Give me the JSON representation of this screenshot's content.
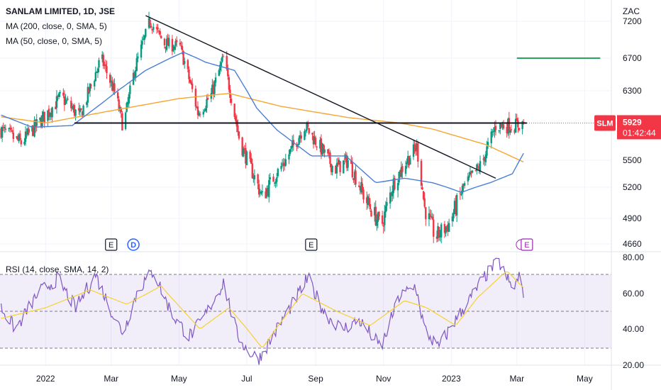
{
  "header": {
    "title": "SANLAM LIMITED, 1D, JSE",
    "ma200_label": "MA (200, close, 0, SMA, 5)",
    "ma50_label": "MA (50, close, 0, SMA, 5)",
    "rsi_label": "RSI (14, close, SMA, 14, 2)"
  },
  "price_tag": {
    "symbol": "SLM",
    "price": "5929",
    "countdown": "01:42:44"
  },
  "colors": {
    "up": "#089981",
    "down": "#f23645",
    "ma200": "#f7a530",
    "ma50": "#4a7fd6",
    "rsi": "#7e57c2",
    "rsi_ma": "#f5d130",
    "trendline": "#131722",
    "support": "#131722",
    "target": "#26a65b",
    "tag": "#f23645"
  },
  "chart_data": [
    {
      "type": "candlestick",
      "currency_label": "ZAC",
      "y_ticks": [
        4660,
        4900,
        5200,
        5500,
        6300,
        6700,
        7200
      ],
      "y_tick_labels": [
        "4660",
        "4900",
        "5200",
        "5500",
        "6300",
        "6700",
        "7200"
      ],
      "ylim": [
        4560,
        7350
      ],
      "x_ticks": [
        "2022",
        "Mar",
        "May",
        "Jul",
        "Sep",
        "Nov",
        "2023",
        "Mar",
        "May"
      ],
      "x_tick_dates": [
        "2022-01-01",
        "2022-03-01",
        "2022-05-01",
        "2022-07-01",
        "2022-09-01",
        "2022-11-01",
        "2023-01-01",
        "2023-03-01",
        "2023-05-01"
      ],
      "xlim": [
        "2021-11-21",
        "2023-05-25"
      ],
      "close_waypoints": [
        {
          "date": "2021-11-22",
          "close": 5850
        },
        {
          "date": "2021-12-10",
          "close": 5700
        },
        {
          "date": "2021-12-28",
          "close": 5960
        },
        {
          "date": "2022-01-15",
          "close": 6230
        },
        {
          "date": "2022-02-01",
          "close": 6000
        },
        {
          "date": "2022-02-20",
          "close": 6700
        },
        {
          "date": "2022-03-05",
          "close": 6250
        },
        {
          "date": "2022-03-12",
          "close": 5880
        },
        {
          "date": "2022-03-22",
          "close": 6550
        },
        {
          "date": "2022-04-05",
          "close": 7200
        },
        {
          "date": "2022-04-18",
          "close": 6900
        },
        {
          "date": "2022-05-02",
          "close": 6850
        },
        {
          "date": "2022-05-18",
          "close": 6050
        },
        {
          "date": "2022-05-30",
          "close": 6250
        },
        {
          "date": "2022-06-10",
          "close": 6700
        },
        {
          "date": "2022-06-25",
          "close": 5700
        },
        {
          "date": "2022-07-05",
          "close": 5400
        },
        {
          "date": "2022-07-15",
          "close": 5100
        },
        {
          "date": "2022-07-25",
          "close": 5300
        },
        {
          "date": "2022-08-05",
          "close": 5500
        },
        {
          "date": "2022-08-22",
          "close": 5900
        },
        {
          "date": "2022-09-05",
          "close": 5650
        },
        {
          "date": "2022-09-18",
          "close": 5400
        },
        {
          "date": "2022-09-30",
          "close": 5500
        },
        {
          "date": "2022-10-15",
          "close": 5100
        },
        {
          "date": "2022-10-30",
          "close": 4820
        },
        {
          "date": "2022-11-10",
          "close": 5250
        },
        {
          "date": "2022-11-22",
          "close": 5500
        },
        {
          "date": "2022-12-01",
          "close": 5650
        },
        {
          "date": "2022-12-08",
          "close": 5000
        },
        {
          "date": "2022-12-18",
          "close": 4720
        },
        {
          "date": "2022-12-30",
          "close": 4850
        },
        {
          "date": "2023-01-12",
          "close": 5200
        },
        {
          "date": "2023-01-28",
          "close": 5450
        },
        {
          "date": "2023-02-10",
          "close": 5900
        },
        {
          "date": "2023-02-28",
          "close": 5900
        },
        {
          "date": "2023-03-07",
          "close": 5929
        }
      ],
      "ma200_waypoints": [
        {
          "date": "2021-11-22",
          "value": 6000
        },
        {
          "date": "2022-01-01",
          "value": 5930
        },
        {
          "date": "2022-03-01",
          "value": 6070
        },
        {
          "date": "2022-05-01",
          "value": 6210
        },
        {
          "date": "2022-06-15",
          "value": 6270
        },
        {
          "date": "2022-08-01",
          "value": 6120
        },
        {
          "date": "2022-10-01",
          "value": 5990
        },
        {
          "date": "2022-11-15",
          "value": 5930
        },
        {
          "date": "2022-12-15",
          "value": 5860
        },
        {
          "date": "2023-02-01",
          "value": 5680
        },
        {
          "date": "2023-03-07",
          "value": 5480
        }
      ],
      "ma50_waypoints": [
        {
          "date": "2021-11-22",
          "value": 6020
        },
        {
          "date": "2021-12-20",
          "value": 5880
        },
        {
          "date": "2022-01-25",
          "value": 5900
        },
        {
          "date": "2022-02-20",
          "value": 6150
        },
        {
          "date": "2022-04-01",
          "value": 6550
        },
        {
          "date": "2022-05-05",
          "value": 6780
        },
        {
          "date": "2022-05-25",
          "value": 6650
        },
        {
          "date": "2022-06-20",
          "value": 6550
        },
        {
          "date": "2022-07-10",
          "value": 6100
        },
        {
          "date": "2022-07-28",
          "value": 5850
        },
        {
          "date": "2022-08-28",
          "value": 5550
        },
        {
          "date": "2022-09-28",
          "value": 5550
        },
        {
          "date": "2022-10-25",
          "value": 5250
        },
        {
          "date": "2022-11-20",
          "value": 5300
        },
        {
          "date": "2022-12-15",
          "value": 5250
        },
        {
          "date": "2023-01-10",
          "value": 5150
        },
        {
          "date": "2023-02-05",
          "value": 5250
        },
        {
          "date": "2023-02-25",
          "value": 5350
        },
        {
          "date": "2023-03-07",
          "value": 5580
        }
      ],
      "trendline": [
        {
          "date": "2022-04-01",
          "price": 7260
        },
        {
          "date": "2023-02-10",
          "price": 5300
        }
      ],
      "support_line": {
        "price": 5929,
        "from": "2022-01-27",
        "to": "2023-03-10"
      },
      "target_line": {
        "price": 6700,
        "from": "2023-03-01",
        "to": "2023-05-15"
      },
      "event_markers": [
        {
          "date": "2022-03-01",
          "label": "E"
        },
        {
          "date": "2022-03-21",
          "label": "D"
        },
        {
          "date": "2022-08-28",
          "label": "E"
        },
        {
          "date": "2023-03-10",
          "label": "E"
        }
      ]
    },
    {
      "type": "line",
      "y_ticks": [
        20,
        40,
        60,
        80
      ],
      "y_tick_labels": [
        "20.00",
        "40.00",
        "60.00",
        "80.00"
      ],
      "ylim": [
        20,
        80
      ],
      "bands": [
        30,
        50,
        70
      ],
      "rsi_waypoints": [
        {
          "date": "2021-11-22",
          "value": 52
        },
        {
          "date": "2021-12-05",
          "value": 40
        },
        {
          "date": "2021-12-25",
          "value": 60
        },
        {
          "date": "2022-01-12",
          "value": 68
        },
        {
          "date": "2022-01-28",
          "value": 52
        },
        {
          "date": "2022-02-15",
          "value": 70
        },
        {
          "date": "2022-03-05",
          "value": 45
        },
        {
          "date": "2022-03-12",
          "value": 38
        },
        {
          "date": "2022-03-25",
          "value": 62
        },
        {
          "date": "2022-04-08",
          "value": 72
        },
        {
          "date": "2022-04-25",
          "value": 48
        },
        {
          "date": "2022-05-10",
          "value": 36
        },
        {
          "date": "2022-05-22",
          "value": 45
        },
        {
          "date": "2022-06-10",
          "value": 66
        },
        {
          "date": "2022-06-22",
          "value": 38
        },
        {
          "date": "2022-07-02",
          "value": 28
        },
        {
          "date": "2022-07-12",
          "value": 24
        },
        {
          "date": "2022-07-28",
          "value": 40
        },
        {
          "date": "2022-08-15",
          "value": 58
        },
        {
          "date": "2022-08-25",
          "value": 68
        },
        {
          "date": "2022-09-10",
          "value": 48
        },
        {
          "date": "2022-09-25",
          "value": 40
        },
        {
          "date": "2022-10-10",
          "value": 45
        },
        {
          "date": "2022-10-30",
          "value": 30
        },
        {
          "date": "2022-11-15",
          "value": 58
        },
        {
          "date": "2022-11-30",
          "value": 64
        },
        {
          "date": "2022-12-08",
          "value": 40
        },
        {
          "date": "2022-12-20",
          "value": 30
        },
        {
          "date": "2023-01-08",
          "value": 48
        },
        {
          "date": "2023-01-30",
          "value": 68
        },
        {
          "date": "2023-02-12",
          "value": 78
        },
        {
          "date": "2023-02-25",
          "value": 62
        },
        {
          "date": "2023-03-03",
          "value": 68
        },
        {
          "date": "2023-03-07",
          "value": 61
        }
      ],
      "rsi_ma_waypoints": [
        {
          "date": "2021-11-22",
          "value": 46
        },
        {
          "date": "2022-01-01",
          "value": 52
        },
        {
          "date": "2022-02-10",
          "value": 62
        },
        {
          "date": "2022-03-15",
          "value": 54
        },
        {
          "date": "2022-04-15",
          "value": 64
        },
        {
          "date": "2022-05-20",
          "value": 40
        },
        {
          "date": "2022-06-15",
          "value": 52
        },
        {
          "date": "2022-07-15",
          "value": 30
        },
        {
          "date": "2022-08-20",
          "value": 60
        },
        {
          "date": "2022-09-20",
          "value": 50
        },
        {
          "date": "2022-10-20",
          "value": 42
        },
        {
          "date": "2022-11-20",
          "value": 56
        },
        {
          "date": "2022-12-10",
          "value": 52
        },
        {
          "date": "2023-01-05",
          "value": 42
        },
        {
          "date": "2023-01-25",
          "value": 58
        },
        {
          "date": "2023-02-20",
          "value": 72
        },
        {
          "date": "2023-03-07",
          "value": 63
        }
      ]
    }
  ]
}
